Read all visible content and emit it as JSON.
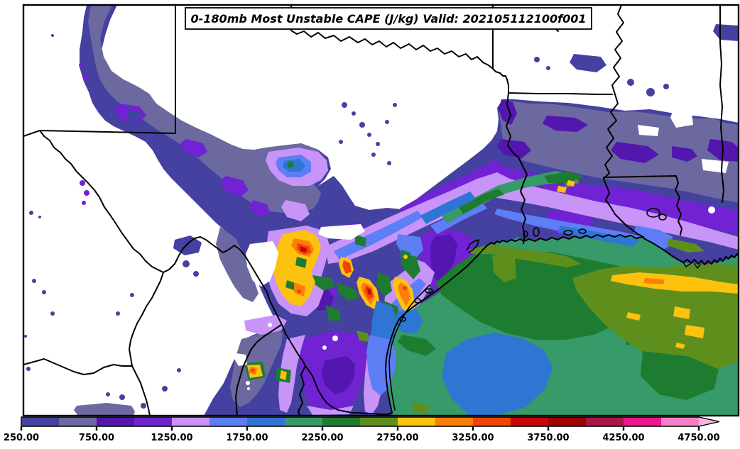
{
  "title": "0-180mb Most Unstable CAPE (J/kg) Valid: 202105112100f001",
  "field_name": "0-180mb Most Unstable CAPE",
  "unit": "J/kg",
  "valid_stamp": "202105112100f001",
  "colorbar": {
    "tick_labels": [
      "250.00",
      "750.00",
      "1250.00",
      "1750.00",
      "2250.00",
      "2750.00",
      "3250.00",
      "3750.00",
      "4250.00",
      "4750.00"
    ],
    "levels": [
      250,
      500,
      750,
      1000,
      1250,
      1500,
      1750,
      2000,
      2250,
      2500,
      2750,
      3000,
      3250,
      3500,
      3750,
      4000,
      4250,
      4500,
      4750
    ],
    "segment_colors": [
      "#4441a1",
      "#6b699f",
      "#5316ae",
      "#7122d3",
      "#c894f8",
      "#5e7ef5",
      "#2f75d4",
      "#369a69",
      "#1e7c31",
      "#5e8f1d",
      "#fdc20d",
      "#fb7e0a",
      "#ee4507",
      "#c90606",
      "#9f0303",
      "#ad1549",
      "#ec168f",
      "#f67fc8"
    ],
    "arrow_color": "#fab4e0",
    "outline_color": "#000000",
    "label_color": "#000000"
  },
  "map": {
    "background_color": "#ffffff",
    "boundary_color": "#000000"
  }
}
